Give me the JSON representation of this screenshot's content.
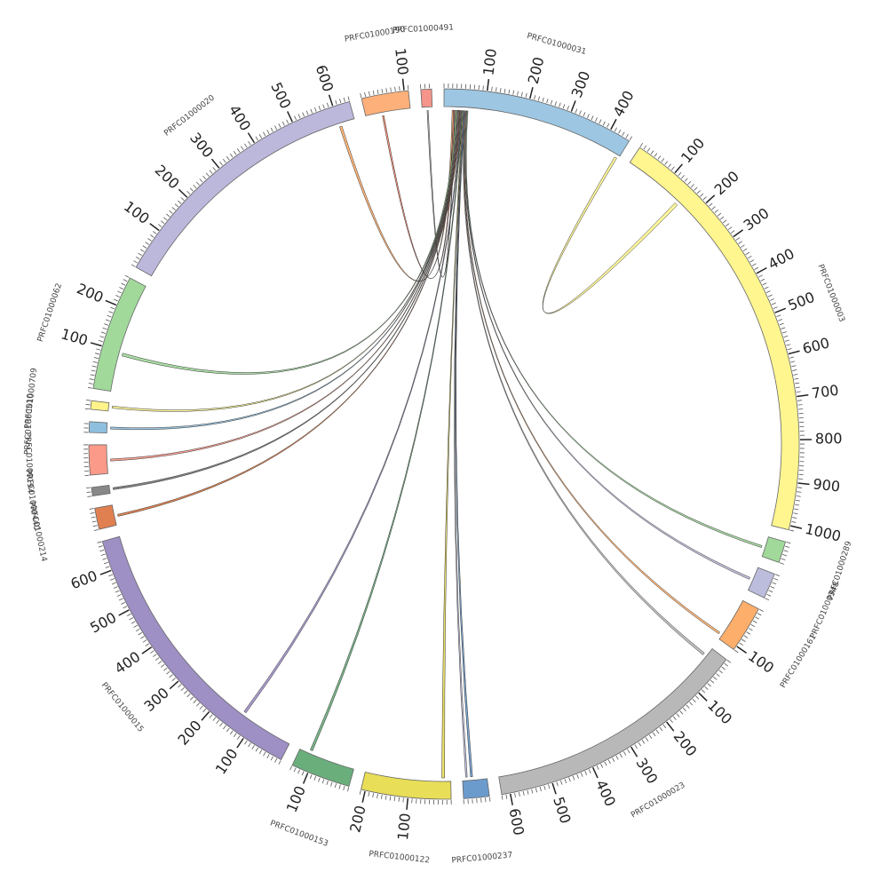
{
  "chart_data": {
    "type": "chord",
    "minor_tick_step": 10,
    "segments": [
      {
        "name": "PRFC01000031",
        "length": 450,
        "color": "#9dc6e2",
        "ticks": [
          100,
          200,
          300,
          400
        ]
      },
      {
        "name": "PRFC01000003",
        "length": 1010,
        "color": "#fff68f",
        "ticks": [
          100,
          200,
          300,
          400,
          500,
          600,
          700,
          800,
          900,
          1000
        ]
      },
      {
        "name": "PRFC01000289",
        "length": 50,
        "color": "#a1d99b",
        "ticks": []
      },
      {
        "name": "PRFC01000348",
        "length": 60,
        "color": "#bcbddc",
        "ticks": []
      },
      {
        "name": "PRFC01000161",
        "length": 110,
        "color": "#fdae6b",
        "ticks": [
          100
        ]
      },
      {
        "name": "PRFC01000023",
        "length": 620,
        "color": "#b8b8b8",
        "ticks": [
          100,
          200,
          300,
          400,
          500,
          600
        ]
      },
      {
        "name": "PRFC01000237",
        "length": 60,
        "color": "#6b9bcd",
        "ticks": []
      },
      {
        "name": "PRFC01000122",
        "length": 210,
        "color": "#e8de58",
        "ticks": [
          100,
          200
        ]
      },
      {
        "name": "PRFC01000153",
        "length": 140,
        "color": "#6aae7c",
        "ticks": [
          100
        ]
      },
      {
        "name": "PRFC01000015",
        "length": 670,
        "color": "#9e8fc4",
        "ticks": [
          100,
          200,
          300,
          400,
          500,
          600
        ]
      },
      {
        "name": "PRFC01000214",
        "length": 50,
        "color": "#e08050",
        "ticks": []
      },
      {
        "name": "PRFC01000440",
        "length": 20,
        "color": "#888888",
        "ticks": []
      },
      {
        "name": "PRFC01000194",
        "length": 70,
        "color": "#fb9a89",
        "ticks": []
      },
      {
        "name": "PRFC01000510",
        "length": 25,
        "color": "#8fbfdf",
        "ticks": []
      },
      {
        "name": "PRFC01000709",
        "length": 20,
        "color": "#fff38a",
        "ticks": []
      },
      {
        "name": "PRFC01000062",
        "length": 270,
        "color": "#a1d99b",
        "ticks": [
          100,
          200
        ]
      },
      {
        "name": "PRFC01000020",
        "length": 640,
        "color": "#bcb8dc",
        "ticks": [
          100,
          200,
          300,
          400,
          500,
          600
        ]
      },
      {
        "name": "PRFC01000190",
        "length": 110,
        "color": "#fdb07a",
        "ticks": [
          100
        ]
      },
      {
        "name": "PRFC01000491",
        "length": 25,
        "color": "#f4948a",
        "ticks": []
      }
    ],
    "links": [
      {
        "source": "PRFC01000031",
        "source_range": [
          440,
          446
        ],
        "target": "PRFC01000003",
        "target_range": [
          148,
          156
        ],
        "color": "#fff68f"
      },
      {
        "source": "PRFC01000031",
        "source_range": [
          20,
          23
        ],
        "target": "PRFC01000020",
        "target_range": [
          600,
          606
        ],
        "color": "#fdae6b"
      },
      {
        "source": "PRFC01000031",
        "source_range": [
          23,
          26
        ],
        "target": "PRFC01000190",
        "target_range": [
          40,
          44
        ],
        "color": "#fb8a72"
      },
      {
        "source": "PRFC01000031",
        "source_range": [
          26,
          28
        ],
        "target": "PRFC01000491",
        "target_range": [
          12,
          15
        ],
        "color": "#aaaaaa"
      },
      {
        "source": "PRFC01000031",
        "source_range": [
          28,
          31
        ],
        "target": "PRFC01000062",
        "target_range": [
          90,
          97
        ],
        "color": "#a1d99b"
      },
      {
        "source": "PRFC01000031",
        "source_range": [
          31,
          33
        ],
        "target": "PRFC01000709",
        "target_range": [
          8,
          13
        ],
        "color": "#fff68f"
      },
      {
        "source": "PRFC01000031",
        "source_range": [
          33,
          35
        ],
        "target": "PRFC01000510",
        "target_range": [
          10,
          15
        ],
        "color": "#8fbfdf"
      },
      {
        "source": "PRFC01000031",
        "source_range": [
          35,
          37
        ],
        "target": "PRFC01000194",
        "target_range": [
          30,
          35
        ],
        "color": "#fb9a89"
      },
      {
        "source": "PRFC01000031",
        "source_range": [
          37,
          39
        ],
        "target": "PRFC01000440",
        "target_range": [
          8,
          13
        ],
        "color": "#777777"
      },
      {
        "source": "PRFC01000031",
        "source_range": [
          39,
          41
        ],
        "target": "PRFC01000214",
        "target_range": [
          20,
          25
        ],
        "color": "#e07840"
      },
      {
        "source": "PRFC01000031",
        "source_range": [
          41,
          43
        ],
        "target": "PRFC01000015",
        "target_range": [
          130,
          136
        ],
        "color": "#9e8fc4"
      },
      {
        "source": "PRFC01000031",
        "source_range": [
          43,
          45
        ],
        "target": "PRFC01000153",
        "target_range": [
          110,
          116
        ],
        "color": "#6aae7c"
      },
      {
        "source": "PRFC01000031",
        "source_range": [
          45,
          47
        ],
        "target": "PRFC01000122",
        "target_range": [
          15,
          22
        ],
        "color": "#e8de58"
      },
      {
        "source": "PRFC01000031",
        "source_range": [
          47,
          49
        ],
        "target": "PRFC01000237",
        "target_range": [
          48,
          52
        ],
        "color": "#bcbddc"
      },
      {
        "source": "PRFC01000031",
        "source_range": [
          49,
          51
        ],
        "target": "PRFC01000237",
        "target_range": [
          35,
          40
        ],
        "color": "#6b9bcd"
      },
      {
        "source": "PRFC01000031",
        "source_range": [
          51,
          53
        ],
        "target": "PRFC01000023",
        "target_range": [
          20,
          26
        ],
        "color": "#b8b8b8"
      },
      {
        "source": "PRFC01000031",
        "source_range": [
          53,
          55
        ],
        "target": "PRFC01000161",
        "target_range": [
          95,
          100
        ],
        "color": "#fdae6b"
      },
      {
        "source": "PRFC01000031",
        "source_range": [
          55,
          57
        ],
        "target": "PRFC01000348",
        "target_range": [
          30,
          35
        ],
        "color": "#bcbddc"
      },
      {
        "source": "PRFC01000031",
        "source_range": [
          57,
          59
        ],
        "target": "PRFC01000289",
        "target_range": [
          25,
          30
        ],
        "color": "#a1d99b"
      }
    ]
  }
}
